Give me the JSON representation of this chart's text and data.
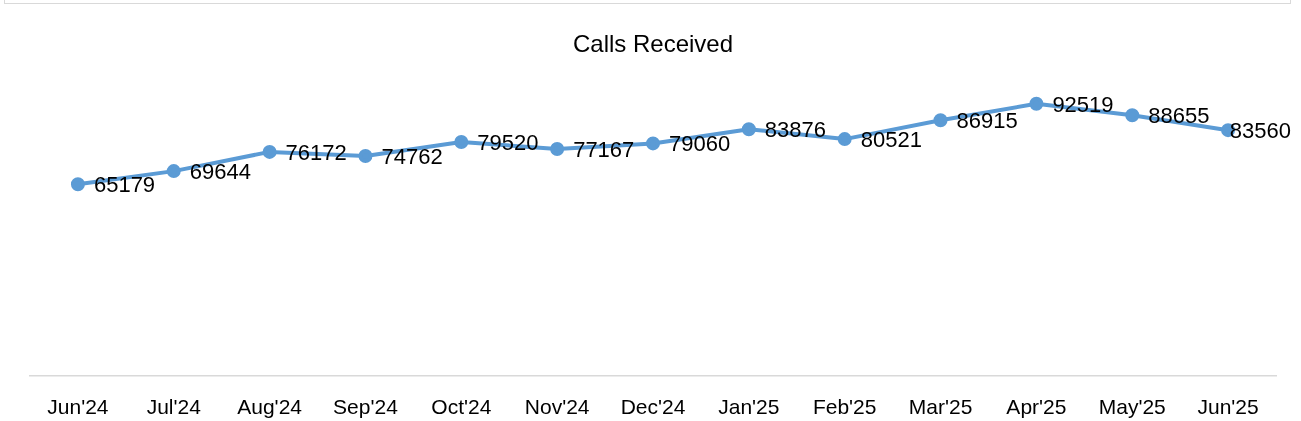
{
  "chart_data": {
    "type": "line",
    "title": "Calls Received",
    "categories": [
      "Jun'24",
      "Jul'24",
      "Aug'24",
      "Sep'24",
      "Oct'24",
      "Nov'24",
      "Dec'24",
      "Jan'25",
      "Feb'25",
      "Mar'25",
      "Apr'25",
      "May'25",
      "Jun'25"
    ],
    "values": [
      65179,
      69644,
      76172,
      74762,
      79520,
      77167,
      79060,
      83876,
      80521,
      86915,
      92519,
      88655,
      83560
    ],
    "color": "#5b9bd5",
    "tick_labels": "x",
    "data_labels": true,
    "marker": "circle",
    "line_style": "solid"
  }
}
